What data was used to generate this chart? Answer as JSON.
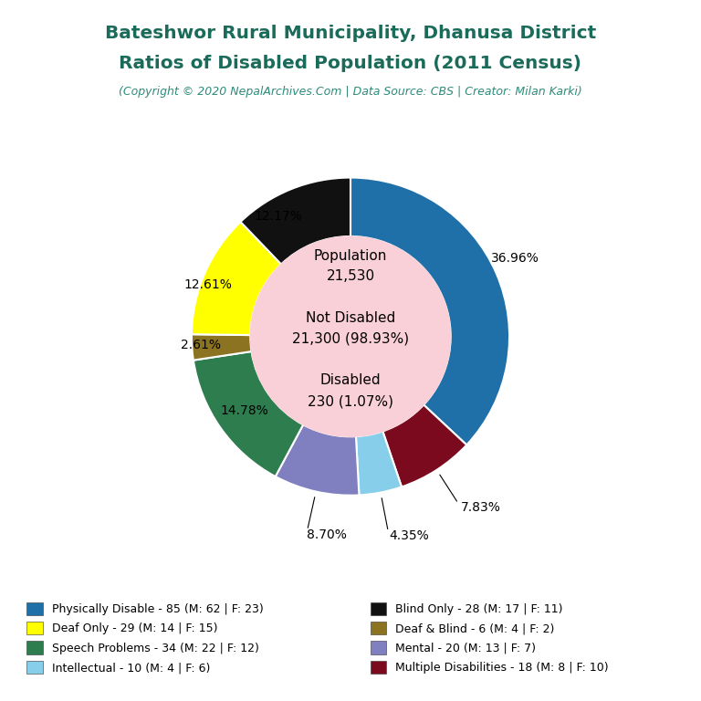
{
  "title_line1": "Bateshwor Rural Municipality, Dhanusa District",
  "title_line2": "Ratios of Disabled Population (2011 Census)",
  "subtitle": "(Copyright © 2020 NepalArchives.Com | Data Source: CBS | Creator: Milan Karki)",
  "title_color": "#1a6b5a",
  "subtitle_color": "#2e8b7a",
  "center_bg": "#f9d0d8",
  "slices": [
    {
      "label": "Physically Disable",
      "count": 85,
      "male": 62,
      "female": 23,
      "pct": 36.96,
      "color": "#1f6fa8"
    },
    {
      "label": "Multiple Disabilities",
      "count": 18,
      "male": 8,
      "female": 10,
      "pct": 7.83,
      "color": "#7b0a1e"
    },
    {
      "label": "Intellectual",
      "count": 10,
      "male": 4,
      "female": 6,
      "pct": 4.35,
      "color": "#87ceeb"
    },
    {
      "label": "Mental",
      "count": 20,
      "male": 13,
      "female": 7,
      "pct": 8.7,
      "color": "#8080c0"
    },
    {
      "label": "Speech Problems",
      "count": 34,
      "male": 22,
      "female": 12,
      "pct": 14.78,
      "color": "#2e7d4f"
    },
    {
      "label": "Deaf & Blind",
      "count": 6,
      "male": 4,
      "female": 2,
      "pct": 2.61,
      "color": "#8b7322"
    },
    {
      "label": "Deaf Only",
      "count": 29,
      "male": 14,
      "female": 15,
      "pct": 12.61,
      "color": "#ffff00"
    },
    {
      "label": "Blind Only",
      "count": 28,
      "male": 17,
      "female": 11,
      "pct": 12.17,
      "color": "#111111"
    }
  ],
  "legend_col1": [
    {
      "label": "Physically Disable - 85 (M: 62 | F: 23)",
      "color": "#1f6fa8"
    },
    {
      "label": "Deaf Only - 29 (M: 14 | F: 15)",
      "color": "#ffff00"
    },
    {
      "label": "Speech Problems - 34 (M: 22 | F: 12)",
      "color": "#2e7d4f"
    },
    {
      "label": "Intellectual - 10 (M: 4 | F: 6)",
      "color": "#87ceeb"
    }
  ],
  "legend_col2": [
    {
      "label": "Blind Only - 28 (M: 17 | F: 11)",
      "color": "#111111"
    },
    {
      "label": "Deaf & Blind - 6 (M: 4 | F: 2)",
      "color": "#8b7322"
    },
    {
      "label": "Mental - 20 (M: 13 | F: 7)",
      "color": "#8080c0"
    },
    {
      "label": "Multiple Disabilities - 18 (M: 8 | F: 10)",
      "color": "#7b0a1e"
    }
  ],
  "bg_color": "#ffffff"
}
